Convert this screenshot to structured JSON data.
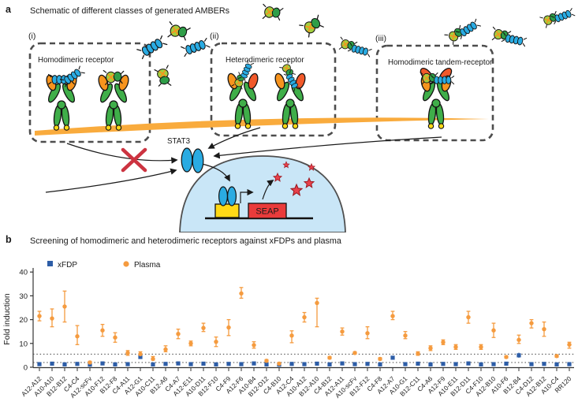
{
  "panel_a": {
    "label": "a",
    "title": "Schematic of different classes of generated AMBERs",
    "classes": [
      {
        "numeral": "(i)",
        "name": "Homodimeric receptor"
      },
      {
        "numeral": "(ii)",
        "name": "Heterodimeric receptor"
      },
      {
        "numeral": "(iii)",
        "name": "Homodimeric tandem-receptor"
      }
    ],
    "stat3_label": "STAT3",
    "seap_label": "SEAP"
  },
  "panel_b": {
    "label": "b",
    "title": "Screening of homodimeric and heterodimeric receptors against xFDPs and plasma",
    "chart_data": {
      "type": "scatter",
      "title": "Screening of homodimeric and heterodimeric receptors against xFDPs and plasma",
      "xlabel": "",
      "ylabel": "Fold induction",
      "ylim": [
        0,
        43
      ],
      "yticks": [
        0,
        10,
        20,
        30,
        40
      ],
      "grid": false,
      "legend_position": "top-left",
      "threshold_lines": [
        2,
        5.5
      ],
      "categories": [
        "A12-A12",
        "A10-A10",
        "B12-B12",
        "C4-C4",
        "A12-scFv",
        "A10-F12",
        "B12-F8",
        "C4-A11",
        "A12-G1",
        "A10-C11",
        "B12-A6",
        "C4-A7",
        "A12-E11",
        "A10-D11",
        "B12-F10",
        "C4-F9",
        "A12-F6",
        "A10-B4",
        "B12-D12",
        "C4-B10",
        "A12-C4",
        "A10-A12",
        "B12-A10",
        "C4-B12",
        "A12-A11",
        "A10-scFv",
        "B12-F12",
        "C4-F8",
        "A12-A7",
        "A10-G1",
        "B12-C11",
        "C4-A6",
        "A12-F9",
        "A10-E11",
        "B12-D11",
        "C4-F10",
        "A12-B10",
        "A10-F6",
        "B12-B4",
        "C4-D12",
        "A12-B12",
        "A10-C4",
        "RR120"
      ],
      "series": [
        {
          "name": "xFDP",
          "marker": "square",
          "color": "#2d5da7",
          "values": [
            1.3,
            1.5,
            1.2,
            1.4,
            1.1,
            1.6,
            1.2,
            1.3,
            4.3,
            1.2,
            1.4,
            1.6,
            1.3,
            1.5,
            1.2,
            1.4,
            1.3,
            1.6,
            1.2,
            1.1,
            1.4,
            1.3,
            1.5,
            1.2,
            1.6,
            1.3,
            1.4,
            1.2,
            4.0,
            1.3,
            1.5,
            1.2,
            1.4,
            1.3,
            1.6,
            1.2,
            1.3,
            1.5,
            5.0,
            1.3,
            1.4,
            1.2,
            1.3
          ],
          "err_lo": [
            0.9,
            1.1,
            0.8,
            1.0,
            0.7,
            1.2,
            0.8,
            0.9,
            3.5,
            0.8,
            1.0,
            1.2,
            0.9,
            1.1,
            0.8,
            1.0,
            0.9,
            1.2,
            0.8,
            0.7,
            1.0,
            0.9,
            1.1,
            0.8,
            1.2,
            0.9,
            1.0,
            0.8,
            3.2,
            0.9,
            1.1,
            0.8,
            1.0,
            0.9,
            1.2,
            0.8,
            0.9,
            1.1,
            4.0,
            0.9,
            1.0,
            0.8,
            0.9
          ],
          "err_hi": [
            1.7,
            1.9,
            1.6,
            1.8,
            1.5,
            2.0,
            1.6,
            1.7,
            5.1,
            1.6,
            1.8,
            2.0,
            1.7,
            1.9,
            1.6,
            1.8,
            1.7,
            2.0,
            1.6,
            1.5,
            1.8,
            1.7,
            1.9,
            1.6,
            2.0,
            1.7,
            1.8,
            1.6,
            4.8,
            1.7,
            1.9,
            1.6,
            1.8,
            1.7,
            2.0,
            1.6,
            1.7,
            1.9,
            6.1,
            1.7,
            1.8,
            1.6,
            1.7
          ]
        },
        {
          "name": "Plasma",
          "marker": "circle",
          "color": "#f59b3f",
          "values": [
            21.5,
            20.5,
            25.5,
            13,
            2,
            15.5,
            12.5,
            6,
            5.5,
            3.5,
            7.5,
            14,
            10,
            16.5,
            10.7,
            16.7,
            31,
            9.3,
            2.7,
            1.5,
            13.3,
            21,
            27,
            4,
            15,
            6,
            14.3,
            3.5,
            21.5,
            13.3,
            5.7,
            8,
            10.5,
            8.5,
            21,
            8.5,
            15.5,
            4.3,
            11.5,
            18.5,
            16,
            4.7,
            9.5
          ],
          "err_lo": [
            19.5,
            17,
            19,
            9.5,
            1.5,
            13,
            10.5,
            5,
            4.5,
            3,
            6.5,
            12,
            9,
            15,
            8.7,
            13.3,
            29,
            8,
            2.2,
            1,
            10.3,
            19,
            17,
            3.5,
            13.5,
            5.5,
            12,
            3,
            20,
            12,
            5,
            7,
            9.5,
            7.5,
            18.5,
            7.5,
            12.5,
            3.8,
            10,
            16.5,
            13,
            4.2,
            8
          ],
          "err_hi": [
            23.5,
            24.5,
            32,
            17.5,
            2.5,
            18,
            14.5,
            7,
            6.5,
            4.5,
            9,
            16,
            11,
            18.5,
            12.7,
            20,
            33.5,
            10.7,
            3.2,
            2,
            15.3,
            23,
            29,
            4.5,
            16.5,
            6.5,
            17,
            4,
            23.5,
            15,
            6.5,
            9,
            11.5,
            9.5,
            23.5,
            9.5,
            18.5,
            4.8,
            13.5,
            20,
            19,
            5.2,
            10.5
          ]
        }
      ]
    }
  },
  "colors": {
    "xfdp_blue": "#2d5da7",
    "plasma_orange": "#f59b3f",
    "receptor_green": "#3fae49",
    "domain_orange": "#f7941e",
    "domain_red": "#f1592a",
    "ligand_blue": "#2aabe2",
    "ligand_lightgreen": "#a3cf3e",
    "membrane_orange": "#f9ab3d",
    "nucleus_blue": "#c9e6f7",
    "seap_red": "#ea3b3b",
    "cross_red": "#cc3340",
    "yellow_promoter": "#ffd916"
  }
}
